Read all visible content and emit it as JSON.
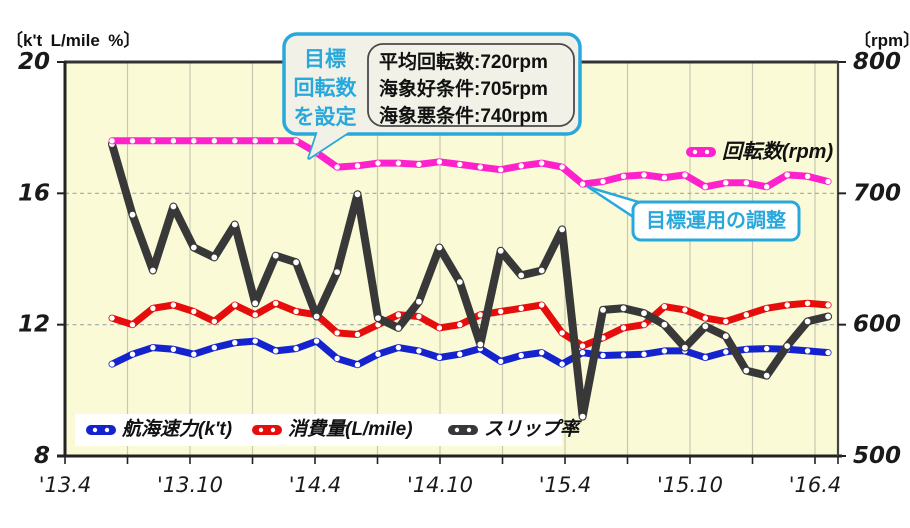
{
  "header": {
    "left_unit": "〔k't L/mile %〕",
    "right_unit": "〔rpm〕"
  },
  "chart_data": {
    "type": "line",
    "title": "",
    "x_tick_labels": [
      "'13.4",
      "'13.10",
      "'14.4",
      "'14.10",
      "'15.4",
      "'15.10",
      "'16.4"
    ],
    "x_start_month": "'13.6",
    "x_interval": "monthly",
    "y_left": {
      "ticks": [
        "20",
        "16",
        "12",
        "8"
      ],
      "min": 8,
      "max": 20
    },
    "y_right": {
      "ticks": [
        "800",
        "700",
        "600",
        "500"
      ],
      "min": 500,
      "max": 800
    },
    "background": "#FAFAD6",
    "grid": {
      "vertical_step_months": 3,
      "horizontal_dashed_at": [
        16,
        12
      ]
    },
    "series": [
      {
        "name": "航海速力(k't)",
        "axis": "left",
        "color": "#1523CE",
        "values": [
          10.8,
          11.1,
          11.3,
          11.25,
          11.1,
          11.3,
          11.45,
          11.5,
          11.2,
          11.27,
          11.5,
          10.97,
          10.78,
          11.1,
          11.3,
          11.2,
          11.0,
          11.1,
          11.27,
          10.88,
          11.06,
          11.15,
          10.8,
          11.15,
          11.06,
          11.08,
          11.1,
          11.2,
          11.2,
          11.0,
          11.17,
          11.25,
          11.27,
          11.25,
          11.2,
          11.15
        ]
      },
      {
        "name": "消費量(L/mile)",
        "axis": "left",
        "color": "#E60D0D",
        "values": [
          12.2,
          12.0,
          12.5,
          12.6,
          12.4,
          12.1,
          12.6,
          12.3,
          12.65,
          12.4,
          12.3,
          11.75,
          11.7,
          12.0,
          12.3,
          12.25,
          11.9,
          12.0,
          12.3,
          12.4,
          12.5,
          12.6,
          11.75,
          11.35,
          11.6,
          11.9,
          12.0,
          12.55,
          12.45,
          12.2,
          12.1,
          12.3,
          12.5,
          12.6,
          12.65,
          12.6
        ]
      },
      {
        "name": "スリップ率",
        "axis": "left",
        "color": "#383838",
        "values": [
          17.5,
          15.35,
          13.65,
          15.6,
          14.35,
          14.05,
          15.05,
          12.65,
          14.1,
          13.9,
          12.25,
          13.6,
          15.97,
          12.2,
          11.9,
          12.7,
          14.35,
          13.3,
          11.4,
          14.25,
          13.5,
          13.65,
          14.9,
          9.2,
          12.45,
          12.5,
          12.35,
          12.0,
          11.3,
          11.95,
          11.65,
          10.6,
          10.45,
          11.35,
          12.1,
          12.25
        ]
      },
      {
        "name": "回転数(rpm)",
        "axis": "right",
        "color": "#FF22CC",
        "values": [
          740,
          740,
          740,
          740,
          740,
          740,
          740,
          740,
          740,
          740,
          731,
          720,
          721,
          723,
          723,
          722,
          724,
          722,
          720,
          718,
          721,
          723,
          720,
          707,
          709,
          713,
          714,
          712,
          714,
          705,
          708,
          708,
          705,
          714,
          713,
          709
        ]
      }
    ],
    "legend_bottom": [
      {
        "label": "航海速力(k't)",
        "color": "#1523CE"
      },
      {
        "label": "消費量(L/mile)",
        "color": "#E60D0D"
      },
      {
        "label": "スリップ率",
        "color": "#383838"
      }
    ],
    "legend_top_right": {
      "label": "回転数(rpm)",
      "color": "#FF22CC"
    }
  },
  "annotations": {
    "bubble": {
      "label_lines": [
        "目標",
        "回転数",
        "を設定"
      ],
      "detail_lines": [
        "平均回転数:720rpm",
        "海象好条件:705rpm",
        "海象悪条件:740rpm"
      ]
    },
    "adjust_note": "目標運用の調整"
  }
}
